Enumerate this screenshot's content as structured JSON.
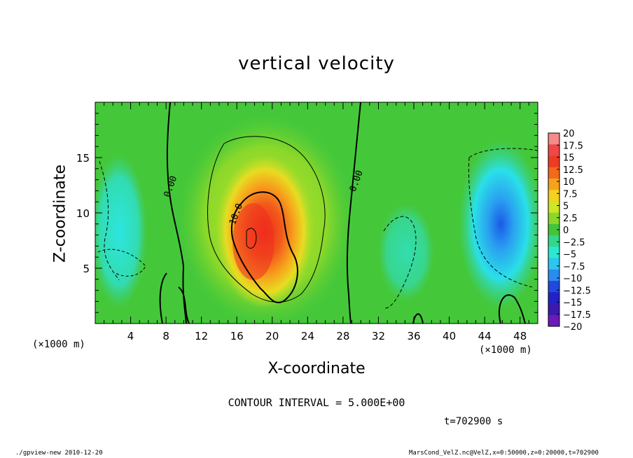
{
  "chart_data": {
    "type": "heatmap",
    "title": "vertical velocity",
    "xlabel": "X-coordinate",
    "ylabel": "Z-coordinate",
    "x_unit_label": "(×1000 m)",
    "x_unit_label_right": "(×1000 m)",
    "xlim": [
      0,
      50
    ],
    "ylim": [
      0,
      20
    ],
    "x_ticks": [
      4,
      8,
      12,
      16,
      20,
      24,
      28,
      32,
      36,
      40,
      44,
      48
    ],
    "y_ticks": [
      5,
      10,
      15
    ],
    "contour_interval_text": "CONTOUR INTERVAL = 5.000E+00",
    "contour_labels": [
      {
        "text": "0.00",
        "x": 8.8,
        "z": 12.3
      },
      {
        "text": "0.00",
        "x": 29.8,
        "z": 12.8
      },
      {
        "text": "10.0",
        "x": 16.2,
        "z": 9.8
      }
    ],
    "colorbar": {
      "labels": [
        "20",
        "17.5",
        "15",
        "12.5",
        "10",
        "7.5",
        "5",
        "2.5",
        "0",
        "−2.5",
        "−5",
        "−7.5",
        "−10",
        "−12.5",
        "−15",
        "−17.5",
        "−20"
      ],
      "colors": [
        "#f58a8a",
        "#f04848",
        "#ee3b22",
        "#f26a1a",
        "#f7a21c",
        "#f5d21e",
        "#cde626",
        "#8ad82a",
        "#42c53a",
        "#33d88a",
        "#2ae8d2",
        "#2cc6f0",
        "#2a8cf2",
        "#2348e0",
        "#2222c8",
        "#3a1ab0",
        "#6a1ab8"
      ]
    },
    "features": [
      {
        "name": "updraft-core",
        "x": 19.5,
        "z": 7.5,
        "w_max": 15
      },
      {
        "name": "downdraft-right",
        "x": 45,
        "z": 8,
        "w_min": -10
      },
      {
        "name": "downdraft-left",
        "x": 1.5,
        "z": 9,
        "w_min": -5
      }
    ]
  },
  "time_label": "t=702900 s",
  "footer": {
    "left": "./gpview-new  2010-12-20",
    "right": "MarsCond_VelZ.nc@VelZ,x=0:50000,z=0:20000,t=702900"
  }
}
